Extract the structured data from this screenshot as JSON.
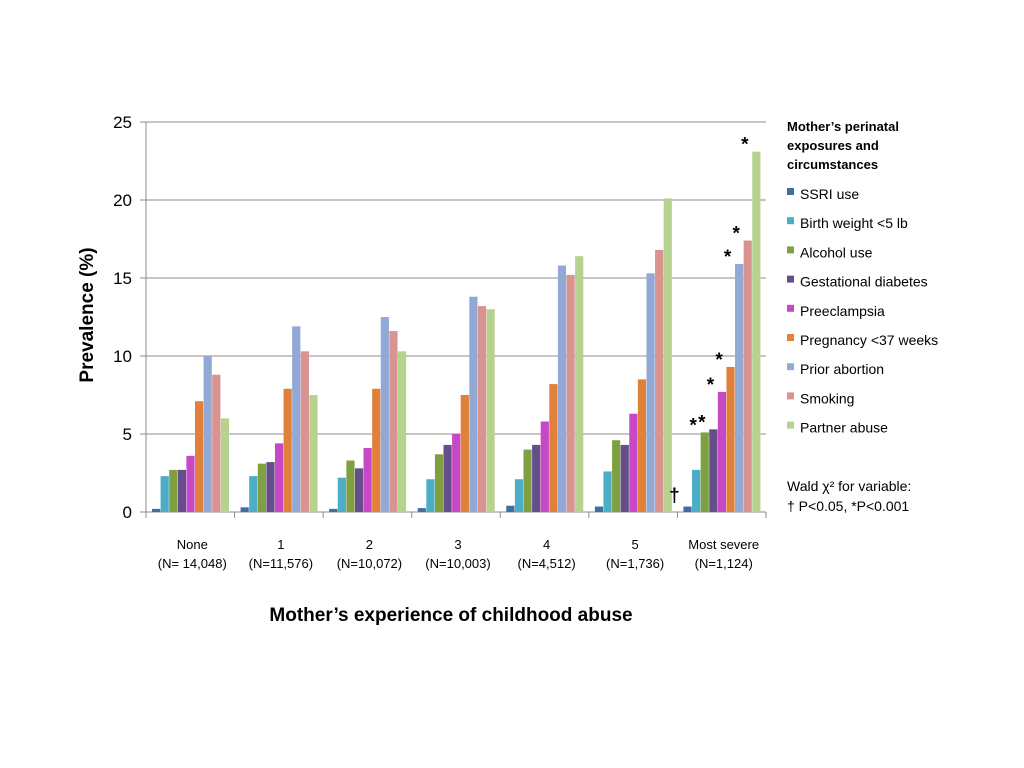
{
  "chart_data": {
    "type": "bar",
    "title": "",
    "ylabel": "Prevalence (%)",
    "xlabel": "Mother’s experience of childhood abuse",
    "ylim": [
      0,
      25
    ],
    "yticks": [
      0,
      5,
      10,
      15,
      20,
      25
    ],
    "grid": true,
    "legend_position": "right",
    "legend_title": [
      "Mother’s perinatal",
      "exposures and",
      "circumstances"
    ],
    "categories": [
      [
        "None",
        "(N= 14,048)"
      ],
      [
        "1",
        "(N=11,576)"
      ],
      [
        "2",
        "(N=10,072)"
      ],
      [
        "3",
        "(N=10,003)"
      ],
      [
        "4",
        "(N=4,512)"
      ],
      [
        "5",
        "(N=1,736)"
      ],
      [
        "Most severe",
        "(N=1,124)"
      ]
    ],
    "series": [
      {
        "name": "SSRI use",
        "color": "#3f6ea3",
        "values": [
          0.2,
          0.3,
          0.2,
          0.25,
          0.4,
          0.35,
          0.35
        ]
      },
      {
        "name": "Birth weight <5 lb",
        "color": "#4badc6",
        "values": [
          2.3,
          2.3,
          2.2,
          2.1,
          2.1,
          2.6,
          2.7
        ]
      },
      {
        "name": "Alcohol use",
        "color": "#7fa042",
        "values": [
          2.7,
          3.1,
          3.3,
          3.7,
          4.0,
          4.6,
          5.1
        ]
      },
      {
        "name": "Gestational diabetes",
        "color": "#664e8a",
        "values": [
          2.7,
          3.2,
          2.8,
          4.3,
          4.3,
          4.3,
          5.3
        ]
      },
      {
        "name": "Preeclampsia",
        "color": "#c748c7",
        "values": [
          3.6,
          4.4,
          4.1,
          5.0,
          5.8,
          6.3,
          7.7
        ]
      },
      {
        "name": "Pregnancy <37 weeks",
        "color": "#e0803a",
        "values": [
          7.1,
          7.9,
          7.9,
          7.5,
          8.2,
          8.5,
          9.3
        ]
      },
      {
        "name": "Prior abortion",
        "color": "#91a9d4",
        "values": [
          10.0,
          11.9,
          12.5,
          13.8,
          15.8,
          15.3,
          15.9
        ]
      },
      {
        "name": "Smoking",
        "color": "#d99391",
        "values": [
          8.8,
          10.3,
          11.6,
          13.2,
          15.2,
          16.8,
          17.4
        ]
      },
      {
        "name": "Partner abuse",
        "color": "#b7d18e",
        "values": [
          6.0,
          7.5,
          10.3,
          13.0,
          16.4,
          20.1,
          23.1
        ]
      }
    ],
    "significance_marks": [
      {
        "category": 6,
        "series": 0,
        "symbol": "†"
      },
      {
        "category": 6,
        "series": 2,
        "symbol": "*"
      },
      {
        "category": 6,
        "series": 4,
        "symbol": "*"
      },
      {
        "category": 6,
        "series": 3,
        "symbol": "*"
      },
      {
        "category": 6,
        "series": 5,
        "symbol": "*"
      },
      {
        "category": 6,
        "series": 6,
        "symbol": "*"
      },
      {
        "category": 6,
        "series": 7,
        "symbol": "*"
      },
      {
        "category": 6,
        "series": 8,
        "symbol": "*"
      }
    ],
    "footnote": [
      "Wald χ² for variable:",
      "† P<0.05, *P<0.001"
    ]
  }
}
